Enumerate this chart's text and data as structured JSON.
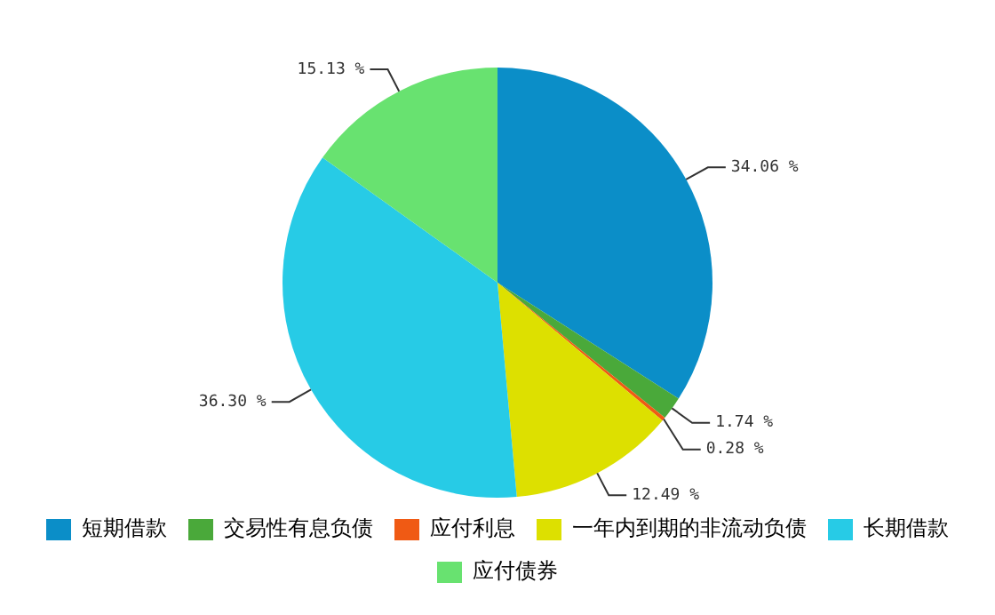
{
  "chart_data": {
    "type": "pie",
    "categories": [
      "短期借款",
      "交易性有息负债",
      "应付利息",
      "一年内到期的非流动负债",
      "长期借款",
      "应付债券"
    ],
    "values": [
      34.06,
      1.74,
      0.28,
      12.49,
      36.3,
      15.13
    ],
    "colors": [
      "#0b8ec8",
      "#4aa93a",
      "#f05a14",
      "#dde000",
      "#27cbe6",
      "#68e270"
    ],
    "value_labels": [
      "34.06 %",
      "1.74 %",
      "0.28 %",
      "12.49 %",
      "36.30 %",
      "15.13 %"
    ],
    "legend": "bottom"
  }
}
